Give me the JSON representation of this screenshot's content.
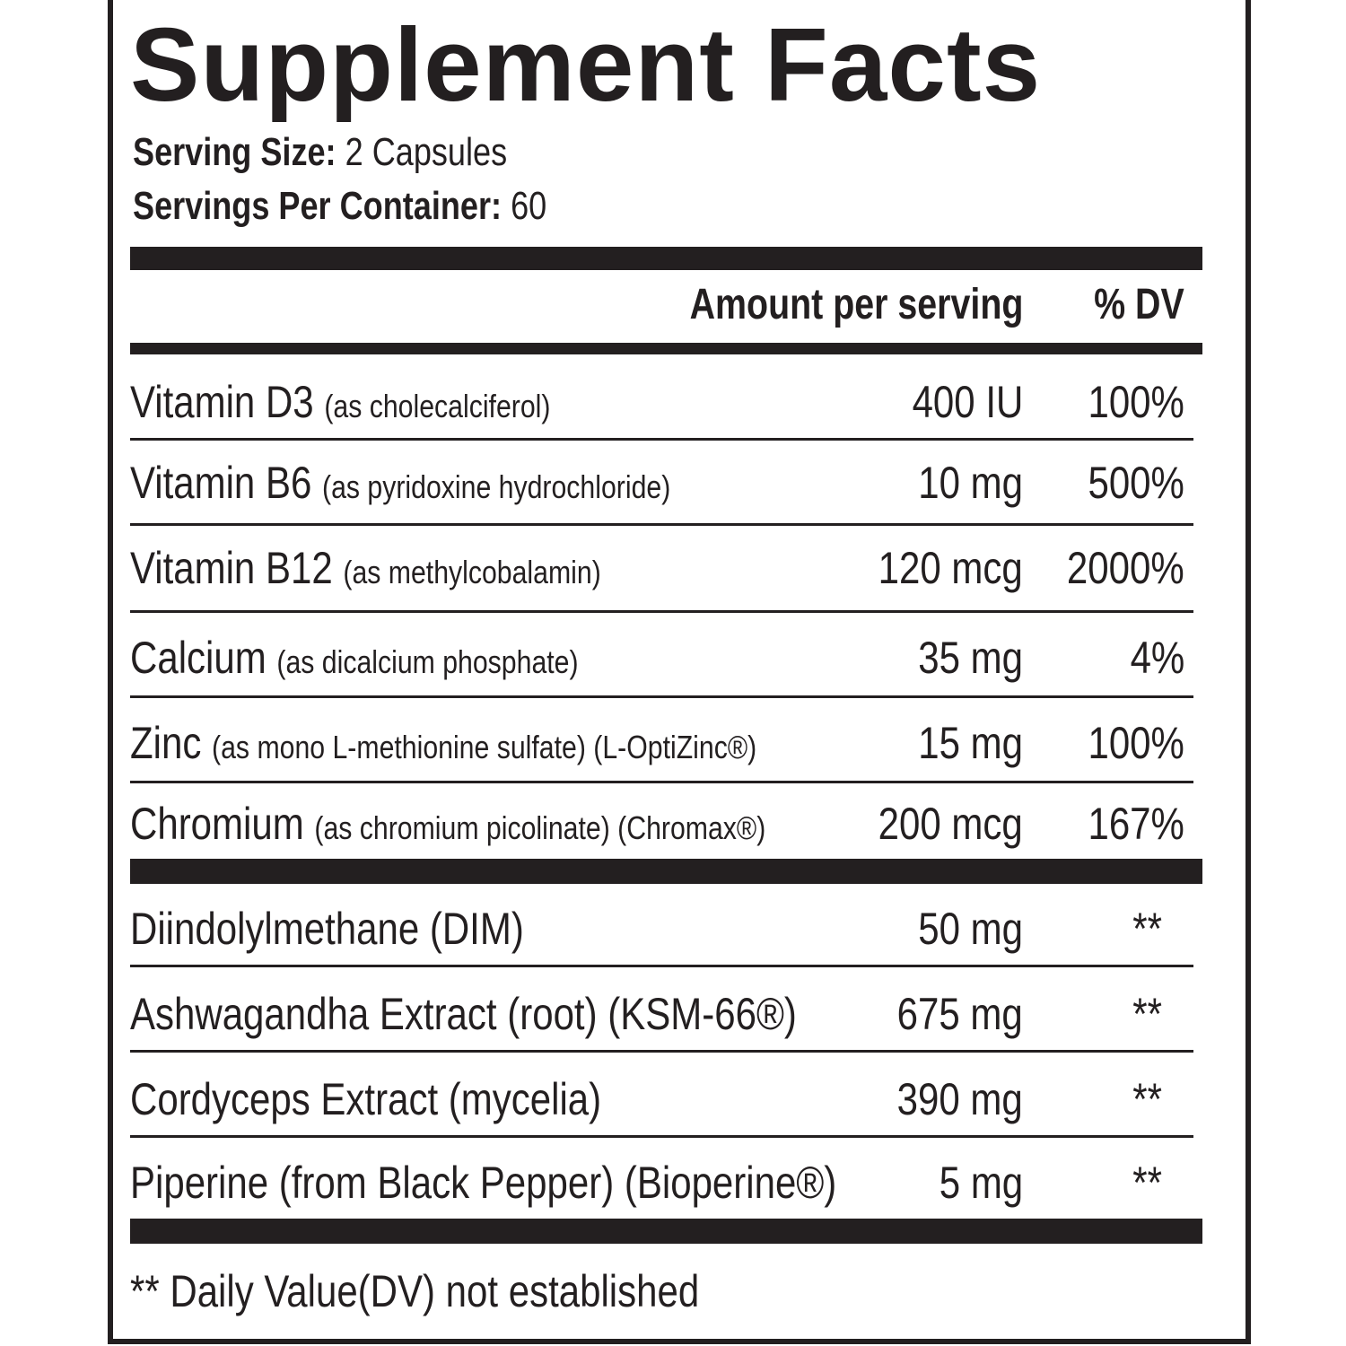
{
  "header": {
    "title": "Supplement Facts",
    "serving_size_label": "Serving Size:",
    "serving_size": "2 Capsules",
    "servings_label": "Servings Per Container:",
    "servings": "60"
  },
  "columns": {
    "amount": "Amount per serving",
    "dv": "% DV"
  },
  "groups": [
    {
      "rows": [
        {
          "name": "Vitamin D3",
          "detail": "(as cholecalciferol)",
          "amount": "400 IU",
          "dv": "100%"
        },
        {
          "name": "Vitamin B6",
          "detail": "(as pyridoxine hydrochloride)",
          "amount": "10 mg",
          "dv": "500%"
        },
        {
          "name": "Vitamin B12",
          "detail": "(as methylcobalamin)",
          "amount": "120 mcg",
          "dv": "2000%"
        },
        {
          "name": "Calcium",
          "detail": "(as dicalcium phosphate)",
          "amount": "35 mg",
          "dv": "4%"
        },
        {
          "name": "Zinc",
          "detail": "(as mono L-methionine sulfate) (L-OptiZinc®)",
          "amount": "15 mg",
          "dv": "100%"
        },
        {
          "name": "Chromium",
          "detail": "(as chromium picolinate) (Chromax®)",
          "amount": "200 mcg",
          "dv": "167%"
        }
      ]
    },
    {
      "rows": [
        {
          "name": "Diindolylmethane (DIM)",
          "amount": "50 mg",
          "dv": "**"
        },
        {
          "name": "Ashwagandha Extract (root) (KSM-66®)",
          "amount": "675 mg",
          "dv": "**"
        },
        {
          "name": "Cordyceps Extract (mycelia)",
          "amount": "390 mg",
          "dv": "**"
        },
        {
          "name": "Piperine (from Black Pepper) (Bioperine®)",
          "amount": "5 mg",
          "dv": "**"
        }
      ]
    }
  ],
  "footnote": "** Daily Value(DV) not established"
}
